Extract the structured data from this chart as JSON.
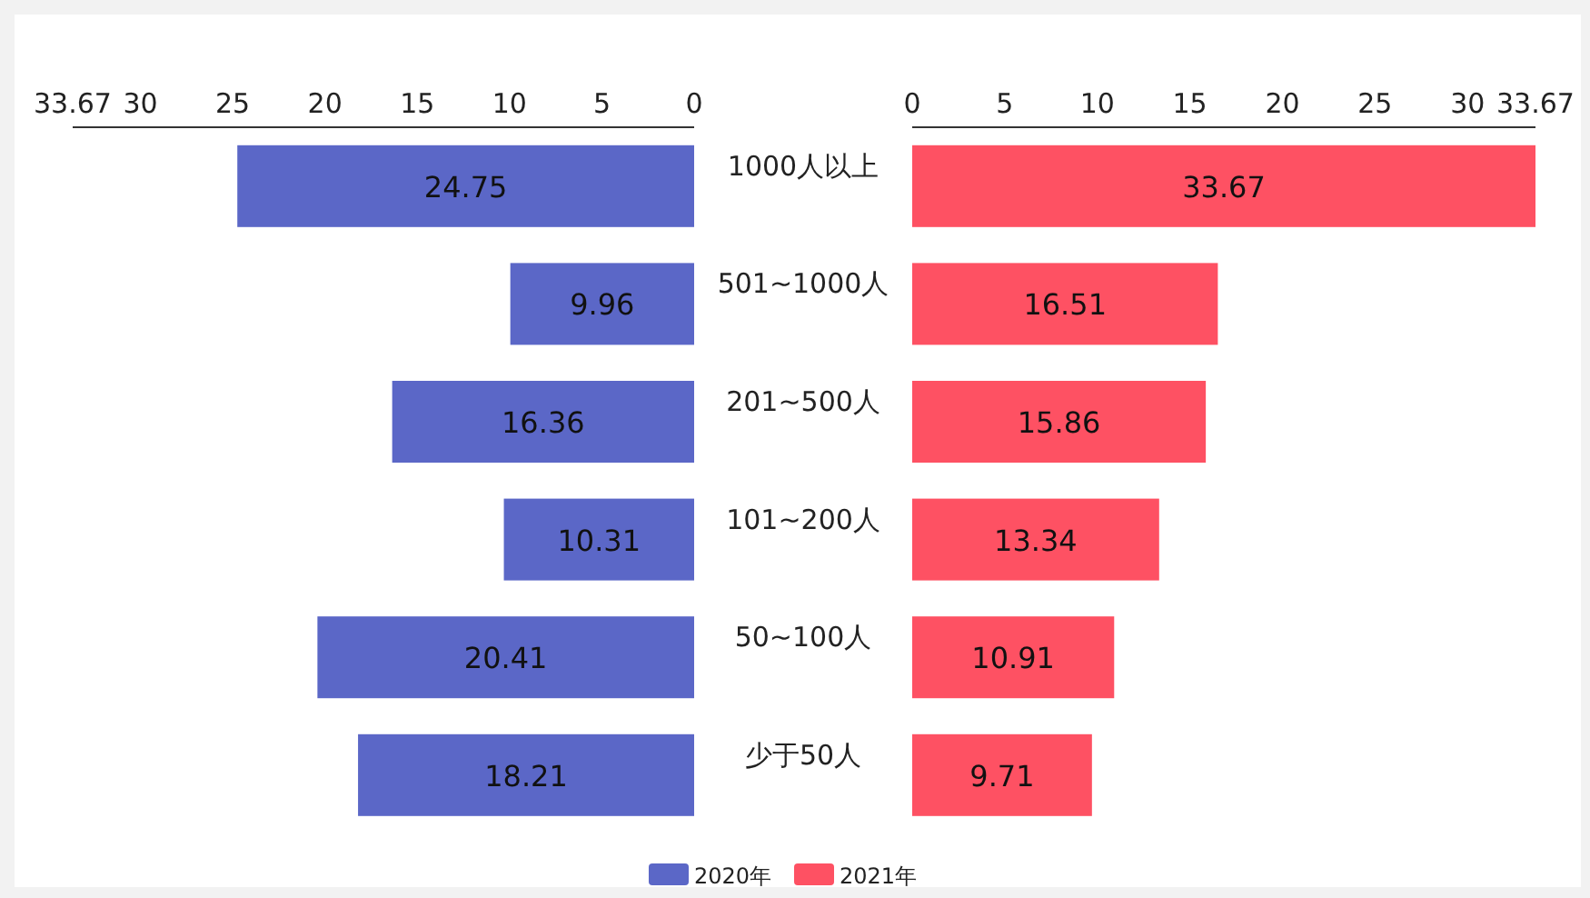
{
  "chart_data": [
    {
      "type": "bar",
      "orientation": "horizontal",
      "categories": [
        "1000人以上",
        "501~1000人",
        "201~500人",
        "101~200人",
        "50~100人",
        "少于50人"
      ],
      "series": [
        {
          "name": "2020年",
          "color": "#5b67c7",
          "values": [
            24.75,
            9.96,
            16.36,
            10.31,
            20.41,
            18.21
          ]
        }
      ],
      "xlim": [
        33.67,
        0
      ],
      "xticks": [
        33.67,
        30,
        25,
        20,
        15,
        10,
        5,
        0
      ],
      "data_labels": true,
      "legend": "bottom"
    },
    {
      "type": "bar",
      "orientation": "horizontal",
      "categories": [
        null,
        null,
        null,
        null,
        null,
        null
      ],
      "series": [
        {
          "name": "2021年",
          "color": "#fe5163",
          "values": [
            33.67,
            16.51,
            15.86,
            13.34,
            10.91,
            9.71
          ]
        }
      ],
      "xlim": [
        0,
        33.67
      ],
      "xticks": [
        0,
        5,
        10,
        15,
        20,
        25,
        30,
        33.67
      ],
      "data_labels": true,
      "legend": "bottom",
      "tick_labels": "x"
    }
  ]
}
